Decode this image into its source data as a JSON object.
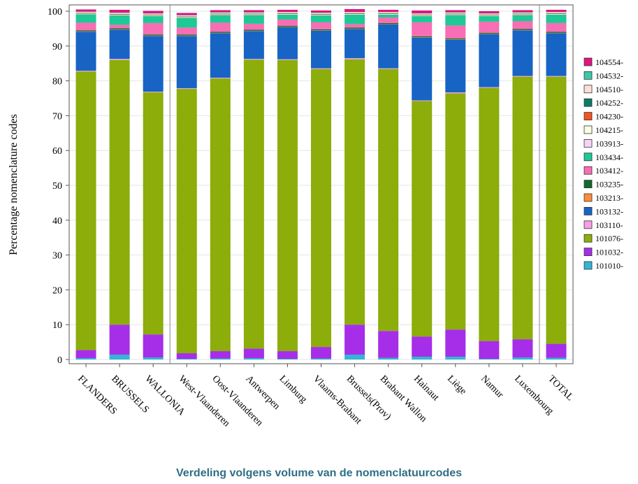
{
  "chart_data": {
    "type": "bar",
    "stacked": true,
    "ylabel": "Percentage nomenclature codes",
    "xlabel": "",
    "ylim": [
      0,
      100
    ],
    "yticks": [
      0,
      10,
      20,
      30,
      40,
      50,
      60,
      70,
      80,
      90,
      100
    ],
    "grid": "horizontal",
    "legend_position": "right",
    "group_separators_after": [
      "WALLONIA",
      "Luxembourg"
    ],
    "categories": [
      "FLANDERS",
      "BRUSSELS",
      "WALLONIA",
      "West-Vlaanderen",
      "Oost-Vlaanderen",
      "Antwerpen",
      "Limburg",
      "Vlaams-Brabant",
      "Brussels(Prov)",
      "Brabant Wallon",
      "Hainaut",
      "Liège",
      "Namur",
      "Luxembourg",
      "TOTAL"
    ],
    "series": [
      {
        "name": "101010-",
        "color": "#33b5d6",
        "values": [
          0.4,
          1.4,
          0.6,
          0.2,
          0.3,
          0.4,
          0.2,
          0.3,
          1.4,
          0.5,
          0.8,
          0.8,
          0.2,
          0.6,
          0.5
        ]
      },
      {
        "name": "101032-",
        "color": "#a62ee8",
        "values": [
          2.3,
          8.6,
          6.6,
          1.6,
          2.1,
          2.7,
          2.2,
          3.3,
          8.6,
          7.7,
          5.8,
          7.8,
          5.1,
          5.2,
          4.0
        ]
      },
      {
        "name": "101076-",
        "color": "#8cad0a",
        "values": [
          80.0,
          76.0,
          69.5,
          75.9,
          78.3,
          83.0,
          83.6,
          79.8,
          76.2,
          75.2,
          67.6,
          67.8,
          72.7,
          75.4,
          76.7
        ]
      },
      {
        "name": "103110-",
        "color": "#f5a0e6",
        "values": [
          0.2,
          0.3,
          0.2,
          0.2,
          0.2,
          0.2,
          0.2,
          0.2,
          0.3,
          0.2,
          0.2,
          0.3,
          0.2,
          0.2,
          0.2
        ]
      },
      {
        "name": "103132-",
        "color": "#1764c4",
        "values": [
          11.2,
          8.4,
          16.0,
          15.0,
          12.8,
          8.0,
          9.2,
          10.8,
          8.4,
          12.6,
          18.0,
          15.1,
          15.2,
          13.1,
          12.3
        ]
      },
      {
        "name": "103213-",
        "color": "#ff8c3a",
        "values": [
          0.1,
          0.1,
          0.1,
          0.1,
          0.1,
          0.1,
          0.1,
          0.1,
          0.1,
          0.1,
          0.1,
          0.1,
          0.1,
          0.1,
          0.1
        ]
      },
      {
        "name": "103235-",
        "color": "#13682e",
        "values": [
          0.3,
          0.3,
          0.3,
          0.3,
          0.3,
          0.3,
          0.3,
          0.3,
          0.3,
          0.3,
          0.3,
          0.3,
          0.3,
          0.3,
          0.3
        ]
      },
      {
        "name": "103412-",
        "color": "#f76eb4",
        "values": [
          2.2,
          1.0,
          3.3,
          2.0,
          2.6,
          1.7,
          1.8,
          2.0,
          1.0,
          1.6,
          4.0,
          3.7,
          3.2,
          2.2,
          2.5
        ]
      },
      {
        "name": "103434-",
        "color": "#1ec996",
        "values": [
          2.4,
          2.7,
          2.0,
          2.8,
          2.2,
          2.5,
          1.4,
          2.0,
          2.7,
          0.8,
          1.8,
          3.0,
          1.6,
          1.8,
          2.4
        ]
      },
      {
        "name": "103913-",
        "color": "#f6d4f8",
        "values": [
          0.1,
          0.1,
          0.1,
          0.1,
          0.1,
          0.1,
          0.1,
          0.1,
          0.1,
          0.1,
          0.1,
          0.1,
          0.1,
          0.1,
          0.1
        ]
      },
      {
        "name": "104215-",
        "color": "#fbfde0",
        "values": [
          0.1,
          0.1,
          0.1,
          0.1,
          0.1,
          0.1,
          0.1,
          0.1,
          0.1,
          0.1,
          0.1,
          0.1,
          0.1,
          0.1,
          0.1
        ]
      },
      {
        "name": "104230-",
        "color": "#f25520",
        "values": [
          0.1,
          0.1,
          0.1,
          0.1,
          0.1,
          0.1,
          0.1,
          0.1,
          0.1,
          0.1,
          0.1,
          0.1,
          0.1,
          0.1,
          0.1
        ]
      },
      {
        "name": "104252-",
        "color": "#0d7a66",
        "values": [
          0.1,
          0.1,
          0.1,
          0.1,
          0.1,
          0.1,
          0.1,
          0.1,
          0.1,
          0.1,
          0.1,
          0.1,
          0.1,
          0.1,
          0.1
        ]
      },
      {
        "name": "104510-",
        "color": "#fbe0d6",
        "values": [
          0.3,
          0.3,
          0.3,
          0.3,
          0.3,
          0.3,
          0.3,
          0.3,
          0.3,
          0.3,
          0.3,
          0.3,
          0.3,
          0.3,
          0.3
        ]
      },
      {
        "name": "104532-",
        "color": "#3cc8a8",
        "values": [
          0.1,
          0.1,
          0.1,
          0.1,
          0.1,
          0.1,
          0.1,
          0.1,
          0.1,
          0.1,
          0.1,
          0.1,
          0.1,
          0.1,
          0.1
        ]
      },
      {
        "name": "104554-",
        "color": "#e0167e",
        "values": [
          0.6,
          0.8,
          0.7,
          0.6,
          0.6,
          0.6,
          0.6,
          0.6,
          0.8,
          0.6,
          0.8,
          0.6,
          0.6,
          0.6,
          0.6
        ]
      }
    ]
  },
  "caption": "Verdeling volgens volume van de nomenclatuurcodes"
}
